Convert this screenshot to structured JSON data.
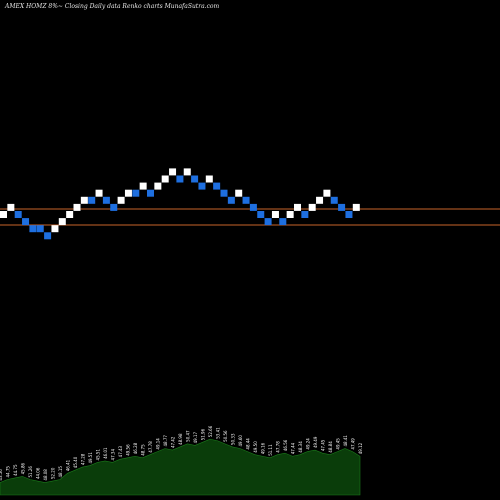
{
  "header": {
    "title": "AMEX  HOMZ 8%~  Closing Daily data  Renko  charts MunafaSutra.com"
  },
  "colors": {
    "background": "#000000",
    "up_brick": "#ffffff",
    "down_brick": "#1e6fe0",
    "reference_line": "#c8642a",
    "volume_fill": "#0a3d0a",
    "volume_stroke": "#1a7a1a"
  },
  "chart_data": [
    {
      "type": "renko",
      "title": "AMEX  HOMZ 8%~  Closing Daily data  Renko  charts MunafaSutra.com",
      "brick_size": 1,
      "levels": [
        0,
        1,
        0,
        -1,
        -2,
        -2,
        -3,
        -2,
        -1,
        0,
        1,
        2,
        2,
        3,
        2,
        1,
        2,
        3,
        3,
        4,
        3,
        4,
        5,
        6,
        5,
        6,
        5,
        4,
        5,
        4,
        3,
        2,
        3,
        2,
        1,
        0,
        -1,
        0,
        -1,
        0,
        1,
        0,
        1,
        2,
        3,
        2,
        1,
        0,
        1
      ],
      "directions": [
        "up",
        "up",
        "down",
        "down",
        "down",
        "down",
        "down",
        "up",
        "up",
        "up",
        "up",
        "up",
        "down",
        "up",
        "down",
        "down",
        "up",
        "up",
        "down",
        "up",
        "down",
        "up",
        "up",
        "up",
        "down",
        "up",
        "down",
        "down",
        "up",
        "down",
        "down",
        "down",
        "up",
        "down",
        "down",
        "down",
        "down",
        "up",
        "down",
        "up",
        "up",
        "down",
        "up",
        "up",
        "up",
        "down",
        "down",
        "down",
        "up"
      ],
      "reference_levels": [
        0.5,
        -0.5
      ]
    },
    {
      "type": "area",
      "title": "volume",
      "values": [
        8,
        10,
        11,
        12,
        10,
        9,
        8,
        9,
        10,
        14,
        16,
        18,
        19,
        21,
        22,
        21,
        23,
        24,
        25,
        24,
        26,
        28,
        30,
        29,
        31,
        33,
        32,
        34,
        36,
        35,
        33,
        31,
        30,
        28,
        26,
        25,
        24,
        26,
        27,
        25,
        26,
        28,
        29,
        27,
        26,
        28,
        30,
        28,
        25
      ],
      "labels": [
        "43.56",
        "44.75",
        "44.75",
        "45.86",
        "51.26",
        "44.06",
        "48.08",
        "52.20",
        "48.15",
        "46.41",
        "45.40",
        "47.28",
        "49.51",
        "45.51",
        "46.01",
        "47.34",
        "47.43",
        "49.56",
        "46.28",
        "48.75",
        "47.78",
        "49.14",
        "48.77",
        "47.42",
        "48.98",
        "50.47",
        "49.17",
        "51.96",
        "52.66",
        "53.41",
        "50.56",
        "50.33",
        "49.60",
        "48.44",
        "49.50",
        "49.16",
        "51.11",
        "47.78",
        "46.56",
        "47.44",
        "48.34",
        "49.24",
        "49.49",
        "47.45",
        "48.84",
        "49.45",
        "48.41",
        "47.49",
        "49.12"
      ]
    }
  ]
}
